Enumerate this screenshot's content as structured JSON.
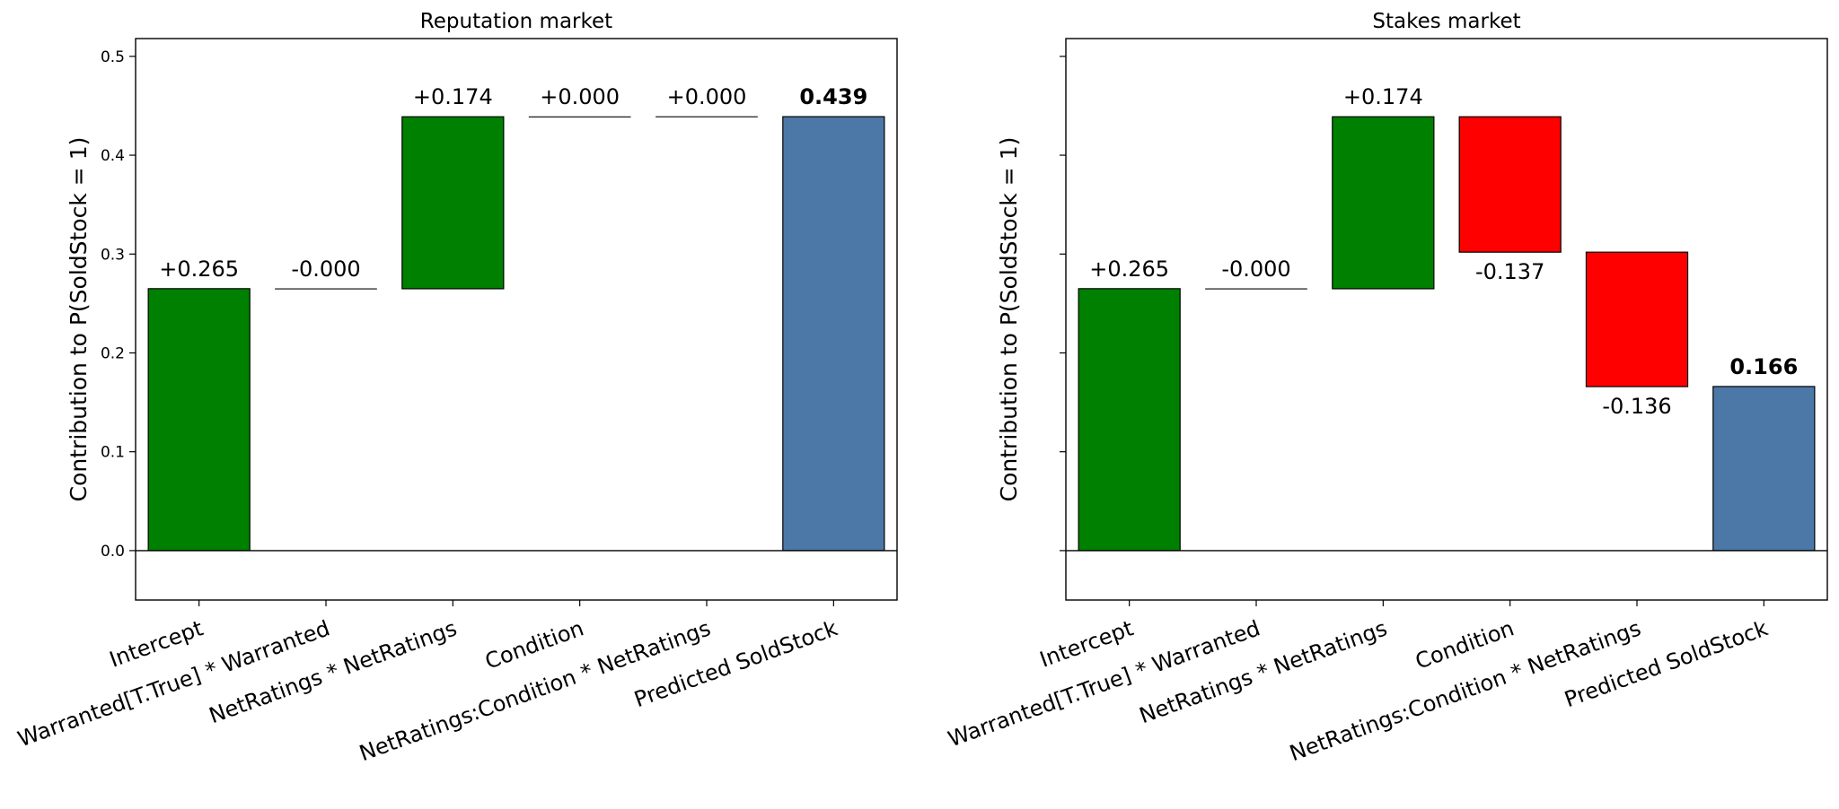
{
  "chart_data": [
    {
      "type": "waterfall",
      "title": "Reputation market",
      "ylabel": "Contribution to P(SoldStock = 1)",
      "categories": [
        "Intercept",
        "Warranted[T.True] * Warranted",
        "NetRatings * NetRatings",
        "Condition",
        "NetRatings:Condition * NetRatings",
        "Predicted SoldStock"
      ],
      "values": [
        0.265,
        -0.0001,
        0.174,
        0.0001,
        0.0001,
        0.439
      ],
      "value_labels": [
        "+0.265",
        "-0.000",
        "+0.174",
        "+0.000",
        "+0.000",
        "0.439"
      ],
      "colors": {
        "increase": "#008000",
        "decrease": "#ff0000",
        "total": "#4c78a8"
      },
      "ylim": [
        -0.05,
        0.518
      ],
      "yticks": [
        {
          "value": 0,
          "label": "0.0"
        },
        0.1,
        0.2,
        0.3,
        0.4,
        0.5
      ]
    },
    {
      "type": "waterfall",
      "title": "Stakes market",
      "ylabel": "Contribution to P(SoldStock = 1)",
      "categories": [
        "Intercept",
        "Warranted[T.True] * Warranted",
        "NetRatings * NetRatings",
        "Condition",
        "NetRatings:Condition * NetRatings",
        "Predicted SoldStock"
      ],
      "values": [
        0.265,
        -0.0001,
        0.174,
        -0.137,
        -0.136,
        0.166
      ],
      "value_labels": [
        "+0.265",
        "-0.000",
        "+0.174",
        "-0.137",
        "-0.136",
        "0.166"
      ],
      "colors": {
        "increase": "#008000",
        "decrease": "#ff0000",
        "total": "#4c78a8"
      },
      "ylim": [
        -0.05,
        0.518
      ],
      "yticks": [
        0,
        0.1,
        0.2,
        0.3,
        0.4,
        0.5
      ]
    }
  ]
}
